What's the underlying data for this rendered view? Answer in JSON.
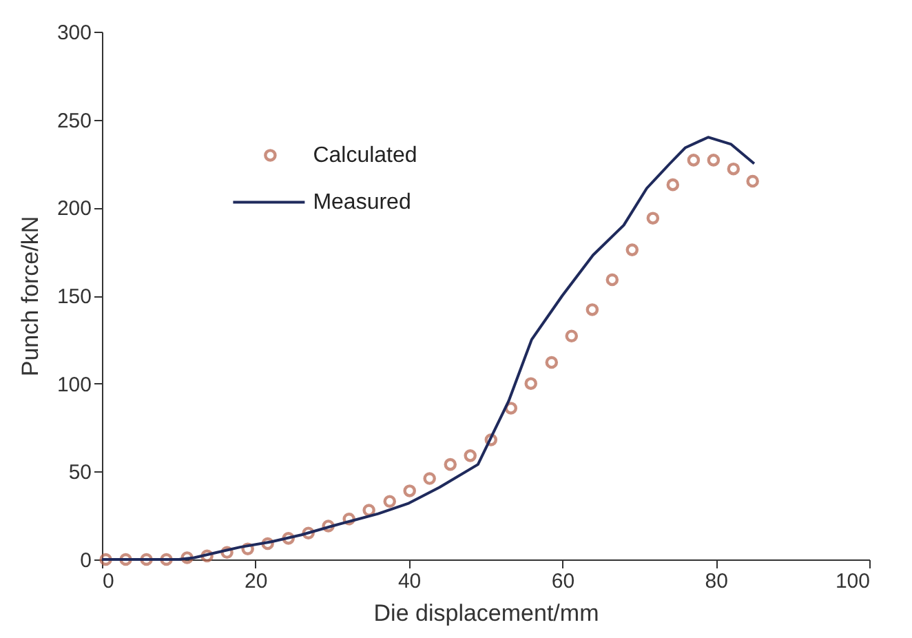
{
  "chart_data": {
    "type": "line",
    "xlabel": "Die displacement/mm",
    "ylabel": "Punch force/kN",
    "xlim": [
      0,
      100
    ],
    "xticks": [
      0,
      20,
      40,
      60,
      80,
      100
    ],
    "ylim": [
      0,
      300
    ],
    "yticks": [
      0,
      50,
      100,
      150,
      200,
      250,
      300
    ],
    "grid": false,
    "legend": "top left",
    "series": [
      {
        "name": "Calculated",
        "type": "scatter",
        "marker": "circle",
        "color": "#b5614a",
        "x": [
          0.5,
          3.1,
          5.8,
          8.4,
          11.1,
          13.7,
          16.3,
          19.0,
          21.6,
          24.3,
          26.9,
          29.5,
          32.2,
          34.8,
          37.5,
          40.1,
          42.7,
          45.4,
          48.0,
          50.7,
          53.3,
          55.9,
          58.6,
          61.2,
          63.9,
          66.5,
          69.1,
          71.8,
          74.4,
          77.1,
          79.7,
          82.3,
          84.8
        ],
        "values": [
          0,
          0,
          0,
          0,
          1,
          2,
          4,
          6,
          9,
          12,
          15,
          19,
          23,
          28,
          33,
          39,
          46,
          54,
          59,
          68,
          86,
          100,
          112,
          127,
          142,
          159,
          176,
          194,
          213,
          227,
          227,
          222,
          215
        ]
      },
      {
        "name": "Measured",
        "type": "line",
        "marker": "none",
        "color": "#1f2a5c",
        "x": [
          0,
          10,
          12,
          15,
          18,
          22,
          26,
          30,
          36,
          40,
          44,
          49,
          53,
          56,
          60,
          64,
          68,
          71,
          74,
          76,
          79,
          82,
          85
        ],
        "values": [
          0,
          0,
          1,
          4,
          7,
          10,
          14,
          19,
          26,
          32,
          41,
          54,
          90,
          125,
          150,
          173,
          190,
          211,
          225,
          234,
          240,
          236,
          225
        ]
      }
    ]
  }
}
